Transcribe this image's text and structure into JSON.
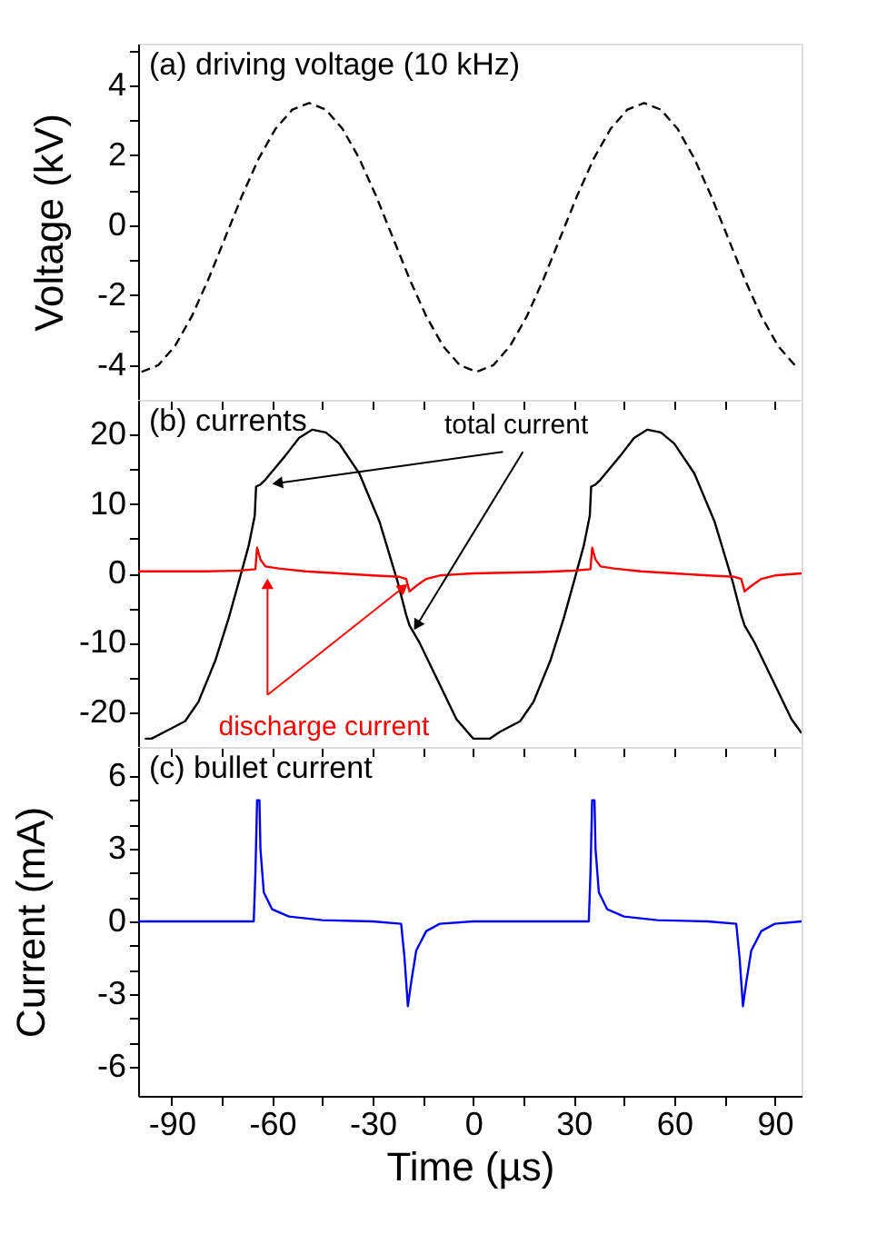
{
  "chart_data": [
    {
      "type": "line",
      "title": "(a) driving voltage (10 kHz)",
      "ylabel": "Voltage (kV)",
      "xlim": [
        -100,
        98
      ],
      "ylim": [
        -5,
        5.2
      ],
      "xticks": [
        {
          "value": -90,
          "label": null
        },
        {
          "value": -75,
          "label": null
        },
        {
          "value": -60,
          "label": null
        },
        {
          "value": -45,
          "label": null
        },
        {
          "value": -30,
          "label": null
        },
        {
          "value": -15,
          "label": null
        },
        {
          "value": 0,
          "label": null
        },
        {
          "value": 15,
          "label": null
        },
        {
          "value": 30,
          "label": null
        },
        {
          "value": 45,
          "label": null
        },
        {
          "value": 60,
          "label": null
        },
        {
          "value": 75,
          "label": null
        },
        {
          "value": 90,
          "label": null
        }
      ],
      "yticks": [
        {
          "value": -4,
          "label": "-4"
        },
        {
          "value": -3,
          "label": null
        },
        {
          "value": -2,
          "label": "-2"
        },
        {
          "value": -1,
          "label": null
        },
        {
          "value": 0,
          "label": "0"
        },
        {
          "value": 1,
          "label": null
        },
        {
          "value": 2,
          "label": "2"
        },
        {
          "value": 3,
          "label": null
        },
        {
          "value": 4,
          "label": "4"
        },
        {
          "value": 5,
          "label": null
        }
      ],
      "tick_labels": "y",
      "grid": false,
      "line_style": "dashed",
      "series": [
        {
          "color": "#000000",
          "x": [
            -99,
            -94,
            -89,
            -84,
            -79,
            -74,
            -69,
            -64,
            -59,
            -54,
            -49,
            -44,
            -39,
            -34,
            -29,
            -24,
            -19,
            -14,
            -9,
            -4,
            1,
            6,
            11,
            16,
            21,
            26,
            31,
            36,
            41,
            46,
            51,
            56,
            61,
            66,
            71,
            76,
            81,
            86,
            91,
            96
          ],
          "values": [
            -4.2,
            -4.01,
            -3.46,
            -2.61,
            -1.54,
            -0.35,
            0.84,
            1.91,
            2.76,
            3.31,
            3.5,
            3.31,
            2.76,
            1.91,
            0.84,
            -0.35,
            -1.54,
            -2.61,
            -3.46,
            -4.01,
            -4.2,
            -4.01,
            -3.46,
            -2.61,
            -1.54,
            -0.35,
            0.84,
            1.91,
            2.76,
            3.31,
            3.5,
            3.31,
            2.76,
            1.91,
            0.84,
            -0.35,
            -1.54,
            -2.61,
            -3.46,
            -4.01
          ]
        }
      ]
    },
    {
      "type": "line",
      "title": "(b) currents",
      "ylabel": "Current (mA)",
      "xlim": [
        -100,
        98
      ],
      "ylim": [
        -25,
        25
      ],
      "xticks": [
        {
          "value": -90,
          "label": null
        },
        {
          "value": -75,
          "label": null
        },
        {
          "value": -60,
          "label": null
        },
        {
          "value": -45,
          "label": null
        },
        {
          "value": -30,
          "label": null
        },
        {
          "value": -15,
          "label": null
        },
        {
          "value": 0,
          "label": null
        },
        {
          "value": 15,
          "label": null
        },
        {
          "value": 30,
          "label": null
        },
        {
          "value": 45,
          "label": null
        },
        {
          "value": 60,
          "label": null
        },
        {
          "value": 75,
          "label": null
        },
        {
          "value": 90,
          "label": null
        }
      ],
      "yticks": [
        -20,
        {
          "value": -15,
          "label": null
        },
        -10,
        {
          "value": -5,
          "label": null
        },
        0,
        {
          "value": 5,
          "label": null
        },
        10,
        {
          "value": 15,
          "label": null
        },
        20
      ],
      "tick_labels": "y",
      "grid": false,
      "line_style": "solid",
      "series": [
        {
          "name": "total current",
          "color": "#000000",
          "x": [
            -98,
            -96,
            -92,
            -86,
            -82,
            -77,
            -73,
            -70,
            -67,
            -65.2,
            -64.8,
            -63.5,
            -62,
            -56,
            -52,
            -48,
            -44,
            -40,
            -34,
            -28,
            -22.5,
            -20,
            -19,
            -16,
            -10,
            -5,
            0,
            5,
            8,
            14,
            18,
            23,
            27,
            30,
            33,
            34.8,
            35.2,
            36.5,
            38,
            44,
            48,
            52,
            56,
            60,
            66,
            72,
            77.5,
            80,
            81,
            84,
            90,
            95,
            98
          ],
          "values": [
            -23.8,
            -23.8,
            -22.8,
            -21.3,
            -18.5,
            -12.6,
            -6.5,
            -1.3,
            4,
            8.3,
            12.5,
            12.8,
            13.5,
            17,
            19.5,
            20.7,
            20.3,
            18.7,
            14.4,
            7.5,
            -1.3,
            -6,
            -7.5,
            -10,
            -16,
            -21,
            -23.8,
            -23.8,
            -22.8,
            -21.3,
            -18.5,
            -12.6,
            -6.5,
            -1.3,
            4,
            8.3,
            12.5,
            12.8,
            13.5,
            17,
            19.5,
            20.7,
            20.3,
            18.7,
            14.4,
            7.5,
            -1.3,
            -6,
            -7.5,
            -10,
            -16,
            -21,
            -23
          ]
        },
        {
          "name": "discharge current",
          "color": "#ff0000",
          "x": [
            -100,
            -80,
            -70,
            -65,
            -64.5,
            -63.5,
            -62,
            -58,
            -50,
            -40,
            -30,
            -22,
            -20,
            -19,
            -17,
            -14,
            -10,
            0,
            20,
            30,
            35,
            35.5,
            36.5,
            38,
            42,
            50,
            60,
            70,
            78,
            80,
            81,
            83,
            86,
            90,
            98
          ],
          "values": [
            0.3,
            0.3,
            0.4,
            0.6,
            3.7,
            2,
            1,
            0.7,
            0.3,
            0,
            -0.3,
            -0.5,
            -0.8,
            -2.6,
            -1.8,
            -0.8,
            -0.3,
            0,
            0.2,
            0.4,
            0.6,
            3.7,
            2,
            1,
            0.7,
            0.3,
            0,
            -0.3,
            -0.5,
            -0.8,
            -2.6,
            -1.8,
            -0.8,
            -0.3,
            0
          ]
        }
      ]
    },
    {
      "type": "line",
      "title": "(c) bullet current",
      "xlabel": "Time (µs)",
      "xlim": [
        -100,
        98
      ],
      "ylim": [
        -7.2,
        7.2
      ],
      "xticks": [
        {
          "value": -90,
          "label": "-90"
        },
        {
          "value": -75,
          "label": null
        },
        {
          "value": -60,
          "label": "-60"
        },
        {
          "value": -45,
          "label": null
        },
        {
          "value": -30,
          "label": "-30"
        },
        {
          "value": -15,
          "label": null
        },
        {
          "value": 0,
          "label": "0"
        },
        {
          "value": 15,
          "label": null
        },
        {
          "value": 30,
          "label": "30"
        },
        {
          "value": 45,
          "label": null
        },
        {
          "value": 60,
          "label": "60"
        },
        {
          "value": 75,
          "label": null
        },
        {
          "value": 90,
          "label": "90"
        }
      ],
      "yticks": [
        -6,
        {
          "value": -5,
          "label": null
        },
        {
          "value": -4,
          "label": null
        },
        -3,
        {
          "value": -2,
          "label": null
        },
        {
          "value": -1,
          "label": null
        },
        0,
        {
          "value": 1,
          "label": null
        },
        {
          "value": 2,
          "label": null
        },
        3,
        {
          "value": 4,
          "label": null
        },
        {
          "value": 5,
          "label": null
        },
        6
      ],
      "grid": false,
      "line_style": "solid",
      "series": [
        {
          "color": "#0000ff",
          "x": [
            -100,
            -65.5,
            -65,
            -64.5,
            -63.8,
            -63.5,
            -62.5,
            -60,
            -55,
            -45,
            -30,
            -21.5,
            -20.5,
            -19.5,
            -18.5,
            -17,
            -14,
            -10,
            0,
            34.5,
            35,
            35.5,
            36.2,
            36.5,
            37.5,
            40,
            45,
            55,
            70,
            78.5,
            79.5,
            80.5,
            81.5,
            83,
            86,
            90,
            98
          ],
          "values": [
            0,
            0,
            2,
            5,
            5,
            3,
            1.2,
            0.5,
            0.2,
            0.05,
            0,
            -0.1,
            -1.5,
            -3.5,
            -2.5,
            -1.2,
            -0.4,
            -0.1,
            0,
            0,
            2,
            5,
            5,
            3,
            1.2,
            0.5,
            0.2,
            0.05,
            0,
            -0.1,
            -1.5,
            -3.5,
            -2.5,
            -1.2,
            -0.4,
            -0.1,
            0
          ]
        }
      ]
    }
  ]
}
